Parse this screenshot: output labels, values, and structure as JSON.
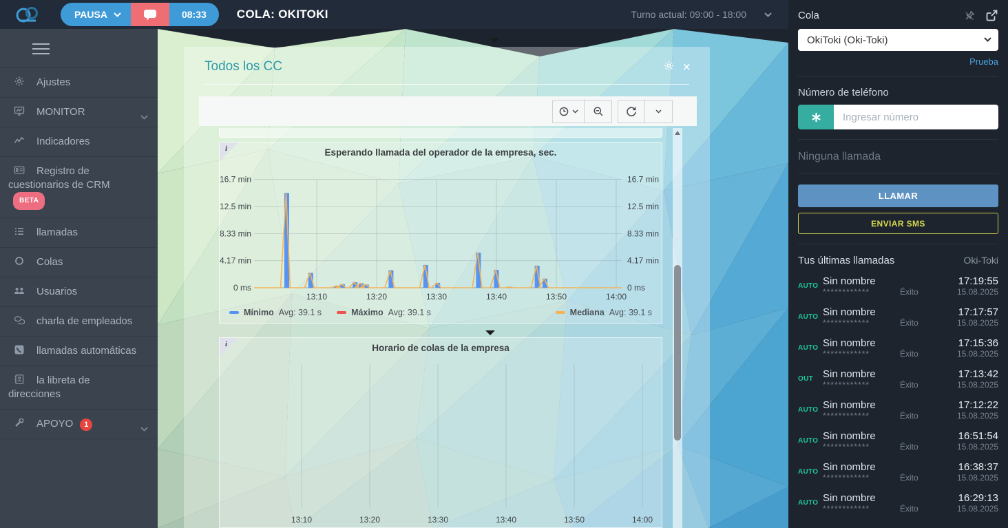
{
  "topbar": {
    "pause_label": "PAUSA",
    "timer": "08:33",
    "queue_title": "COLA: OKITOKI",
    "shift_label": "Turno actual: 09:00 - 18:00"
  },
  "sidebar": {
    "items": [
      {
        "key": "ajustes",
        "label": "Ajustes",
        "icon": "gear"
      },
      {
        "key": "monitor",
        "label": "MONITOR",
        "icon": "monitor",
        "chevron": true
      },
      {
        "key": "indicadores",
        "label": "Indicadores",
        "icon": "trend"
      },
      {
        "key": "registro-cuestionarios-crm",
        "label": "Registro de cuestionarios de CRM",
        "icon": "idcard",
        "badge": "BETA",
        "badge_style": "beta"
      },
      {
        "key": "llamadas",
        "label": "llamadas",
        "icon": "list"
      },
      {
        "key": "colas",
        "label": "Colas",
        "icon": "circle"
      },
      {
        "key": "usuarios",
        "label": "Usuarios",
        "icon": "users"
      },
      {
        "key": "charla-de-empleados",
        "label": "charla de empleados",
        "icon": "chat"
      },
      {
        "key": "llamadas-automaticas",
        "label": "llamadas automáticas",
        "icon": "phone"
      },
      {
        "key": "libreta-de-direcciones",
        "label": "la libreta de direcciones",
        "icon": "book"
      },
      {
        "key": "apoyo",
        "label": "APOYO",
        "icon": "wrench",
        "badge": "1",
        "badge_style": "count",
        "chevron": true
      }
    ]
  },
  "modal": {
    "title": "Todos los CC"
  },
  "right_panel": {
    "cola_label": "Cola",
    "cola_value": "OkiToki (Oki-Toki)",
    "prueba_link": "Prueba",
    "phone_label": "Número de teléfono",
    "phone_placeholder": "Ingresar número",
    "no_call_text": "Ninguna llamada",
    "call_button": "LLAMAR",
    "sms_button": "ENVIAR SMS",
    "history_title": "Tus últimas llamadas",
    "history_queue": "Oki-Toki",
    "calls": [
      {
        "type": "AUTO",
        "name": "Sin nombre",
        "masked": "************",
        "result": "Éxito",
        "time": "17:19:55",
        "date": "15.08.2025"
      },
      {
        "type": "AUTO",
        "name": "Sin nombre",
        "masked": "************",
        "result": "Éxito",
        "time": "17:17:57",
        "date": "15.08.2025"
      },
      {
        "type": "AUTO",
        "name": "Sin nombre",
        "masked": "************",
        "result": "Éxito",
        "time": "17:15:36",
        "date": "15.08.2025"
      },
      {
        "type": "OUT",
        "name": "Sin nombre",
        "masked": "************",
        "result": "Éxito",
        "time": "17:13:42",
        "date": "15.08.2025"
      },
      {
        "type": "AUTO",
        "name": "Sin nombre",
        "masked": "************",
        "result": "Éxito",
        "time": "17:12:22",
        "date": "15.08.2025"
      },
      {
        "type": "AUTO",
        "name": "Sin nombre",
        "masked": "************",
        "result": "Éxito",
        "time": "16:51:54",
        "date": "15.08.2025"
      },
      {
        "type": "AUTO",
        "name": "Sin nombre",
        "masked": "************",
        "result": "Éxito",
        "time": "16:38:37",
        "date": "15.08.2025"
      },
      {
        "type": "AUTO",
        "name": "Sin nombre",
        "masked": "************",
        "result": "Éxito",
        "time": "16:29:13",
        "date": "15.08.2025"
      }
    ]
  },
  "chart_data": [
    {
      "type": "bar",
      "title": "Esperando llamada del operador de la empresa, sec.",
      "x_ticks": [
        "13:10",
        "13:20",
        "13:30",
        "13:40",
        "13:50",
        "14:00"
      ],
      "x_range": [
        "13:00",
        "14:00"
      ],
      "y_ticks": [
        "0 ms",
        "4.17 min",
        "8.33 min",
        "12.5 min",
        "16.7 min"
      ],
      "ylim": [
        0,
        16.7
      ],
      "y_unit": "min",
      "grid": true,
      "legend_position": "bottom",
      "series": [
        {
          "name": "Mínimo",
          "avg_label": "Avg: 39.1 s",
          "color": "#5794f2",
          "style": "bar",
          "legend_side": "left"
        },
        {
          "name": "Máximo",
          "avg_label": "Avg: 39.1 s",
          "color": "#ef5350",
          "style": "bar",
          "legend_side": "left"
        },
        {
          "name": "Mediana",
          "avg_label": "Avg: 39.1 s",
          "color": "#f5b356",
          "style": "line",
          "legend_side": "right"
        }
      ],
      "points": [
        {
          "time": "13:05",
          "min_after_13h": 5.0,
          "value_min": 14.6
        },
        {
          "time": "13:09",
          "min_after_13h": 9.0,
          "value_min": 2.3
        },
        {
          "time": "13:13",
          "min_after_13h": 13.4,
          "value_min": 0.3
        },
        {
          "time": "13:14",
          "min_after_13h": 14.3,
          "value_min": 0.55
        },
        {
          "time": "13:16",
          "min_after_13h": 16.4,
          "value_min": 0.85
        },
        {
          "time": "13:17",
          "min_after_13h": 17.4,
          "value_min": 0.7
        },
        {
          "time": "13:18",
          "min_after_13h": 18.3,
          "value_min": 0.5
        },
        {
          "time": "13:22",
          "min_after_13h": 22.4,
          "value_min": 2.7
        },
        {
          "time": "13:28",
          "min_after_13h": 28.2,
          "value_min": 3.5
        },
        {
          "time": "13:30",
          "min_after_13h": 30.2,
          "value_min": 0.75
        },
        {
          "time": "13:37",
          "min_after_13h": 37.0,
          "value_min": 5.4
        },
        {
          "time": "13:40",
          "min_after_13h": 40.0,
          "value_min": 2.75
        },
        {
          "time": "13:42",
          "min_after_13h": 42.3,
          "value_min": 0.12
        },
        {
          "time": "13:47",
          "min_after_13h": 46.8,
          "value_min": 3.4
        },
        {
          "time": "13:48",
          "min_after_13h": 48.1,
          "value_min": 1.4
        }
      ]
    },
    {
      "type": "line",
      "title": "Horario de colas de la empresa",
      "x_ticks": [
        "13:10",
        "13:20",
        "13:30",
        "13:40",
        "13:50",
        "14:00"
      ],
      "x_range": [
        "13:00",
        "14:00"
      ],
      "grid": "vertical",
      "series": [],
      "points": []
    }
  ],
  "colors": {
    "accent_blue": "#3f9bd7",
    "alert_red": "#ee6e73",
    "badge_green": "#1fc79b",
    "link_blue": "#4aa3e0",
    "call_button_blue": "#5d92c3",
    "sms_yellow": "#d8da4d",
    "input_teal": "#35ada0",
    "modal_title_teal": "#2d9aa8",
    "bar_blue": "#5794f2",
    "line_orange": "#f5b356",
    "legend_red": "#ef5350"
  }
}
